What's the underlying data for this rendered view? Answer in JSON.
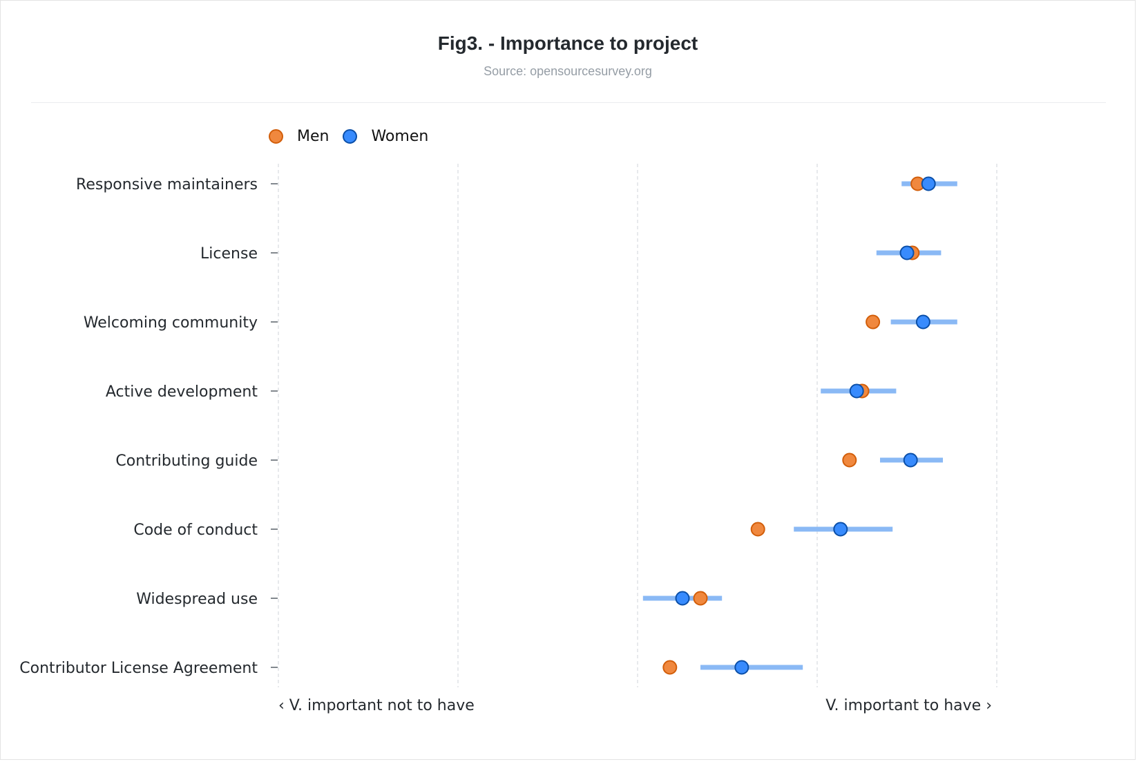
{
  "chart_data": {
    "type": "scatter",
    "title": "Fig3. - Importance to project",
    "subtitle": "Source: opensourcesurvey.org",
    "x_axis": {
      "min": -2,
      "max": 2,
      "ticks": [
        -2,
        -1,
        0,
        1,
        2
      ],
      "left_label": "‹ V. important not to have",
      "right_label": "V. important to have ›"
    },
    "grid": true,
    "legend_position": "top-left",
    "categories": [
      "Responsive maintainers",
      "License",
      "Welcoming community",
      "Active development",
      "Contributing guide",
      "Code of conduct",
      "Widespread use",
      "Contributor License Agreement"
    ],
    "series": [
      {
        "name": "Men",
        "color": "#f0883e",
        "stroke": "#d25e0a",
        "values": [
          1.56,
          1.53,
          1.31,
          1.25,
          1.18,
          0.67,
          0.35,
          0.18
        ]
      },
      {
        "name": "Women",
        "color": "#388bfd",
        "stroke": "#0b4fa8",
        "values": [
          1.62,
          1.5,
          1.59,
          1.22,
          1.52,
          1.13,
          0.25,
          0.58
        ],
        "ci_low": [
          1.47,
          1.33,
          1.41,
          1.02,
          1.35,
          0.87,
          0.03,
          0.35
        ],
        "ci_high": [
          1.78,
          1.69,
          1.78,
          1.44,
          1.7,
          1.42,
          0.47,
          0.92
        ],
        "ci_color": "#8ab9f5"
      }
    ]
  }
}
